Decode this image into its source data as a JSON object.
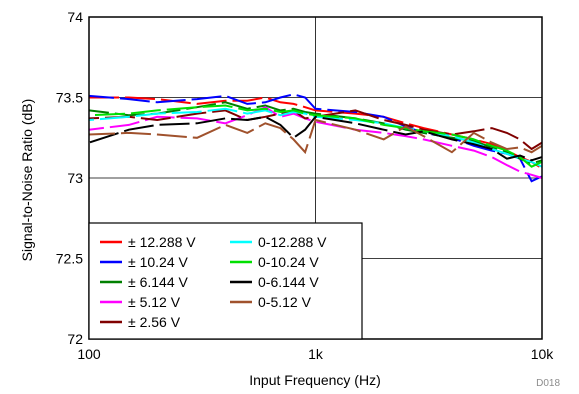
{
  "figure_id": "D018",
  "chart_data": {
    "type": "line",
    "title": "",
    "xlabel": "Input Frequency (Hz)",
    "ylabel": "Signal-to-Noise Ratio (dB)",
    "x_scale": "log",
    "xlim": [
      100,
      10000
    ],
    "ylim": [
      72,
      74
    ],
    "x_ticks": [
      100,
      1000,
      10000
    ],
    "x_tick_labels": [
      "100",
      "1k",
      "10k"
    ],
    "y_ticks": [
      72,
      72.5,
      73,
      73.5,
      74
    ],
    "y_tick_labels": [
      "72",
      "72.5",
      "73",
      "73.5",
      "74"
    ],
    "grid": true,
    "legend_placement": "bottom-left",
    "line_style": "dashed",
    "x": [
      100,
      150,
      200,
      300,
      400,
      500,
      600,
      700,
      800,
      900,
      1000,
      1500,
      2000,
      2500,
      3000,
      4000,
      5000,
      6000,
      7000,
      8000,
      9000,
      10000
    ],
    "series": [
      {
        "name": "± 12.288 V",
        "color": "#ff0000",
        "values": [
          73.5,
          73.5,
          73.49,
          73.46,
          73.48,
          73.48,
          73.5,
          73.47,
          73.46,
          73.44,
          73.42,
          73.4,
          73.38,
          73.34,
          73.31,
          73.27,
          73.24,
          73.21,
          73.17,
          73.13,
          73.1,
          73.06
        ]
      },
      {
        "name": "± 10.24 V",
        "color": "#0000ff",
        "values": [
          73.51,
          73.49,
          73.47,
          73.49,
          73.51,
          73.46,
          73.47,
          73.5,
          73.52,
          73.5,
          73.43,
          73.41,
          73.38,
          73.32,
          73.28,
          73.25,
          73.2,
          73.17,
          73.15,
          73.12,
          72.98,
          73.01
        ]
      },
      {
        "name": "± 6.144 V",
        "color": "#008000",
        "values": [
          73.42,
          73.39,
          73.4,
          73.44,
          73.47,
          73.43,
          73.45,
          73.42,
          73.43,
          73.41,
          73.4,
          73.37,
          73.34,
          73.3,
          73.28,
          73.25,
          73.23,
          73.19,
          73.16,
          73.12,
          73.09,
          73.11
        ]
      },
      {
        "name": "± 5.12 V",
        "color": "#ff00ff",
        "values": [
          73.3,
          73.33,
          73.38,
          73.37,
          73.34,
          73.39,
          73.44,
          73.38,
          73.4,
          73.37,
          73.35,
          73.3,
          73.28,
          73.26,
          73.24,
          73.2,
          73.17,
          73.13,
          73.08,
          73.04,
          73.02,
          73.0
        ]
      },
      {
        "name": "± 2.56 V",
        "color": "#800000",
        "values": [
          73.37,
          73.38,
          73.36,
          73.4,
          73.42,
          73.36,
          73.38,
          73.4,
          73.42,
          73.37,
          73.38,
          73.42,
          73.36,
          73.33,
          73.3,
          73.27,
          73.29,
          73.31,
          73.28,
          73.24,
          73.18,
          73.22
        ]
      },
      {
        "name": "0-12.288 V",
        "color": "#00ffff",
        "values": [
          73.36,
          73.38,
          73.4,
          73.41,
          73.43,
          73.4,
          73.42,
          73.39,
          73.41,
          73.4,
          73.38,
          73.36,
          73.34,
          73.31,
          73.29,
          73.26,
          73.22,
          73.18,
          73.15,
          73.12,
          73.1,
          73.07
        ]
      },
      {
        "name": "0-10.24 V",
        "color": "#00e000",
        "values": [
          73.39,
          73.4,
          73.42,
          73.44,
          73.45,
          73.42,
          73.43,
          73.41,
          73.42,
          73.4,
          73.39,
          73.37,
          73.33,
          73.31,
          73.29,
          73.27,
          73.24,
          73.2,
          73.17,
          73.13,
          73.07,
          73.1
        ]
      },
      {
        "name": "0-6.144 V",
        "color": "#000000",
        "values": [
          73.22,
          73.3,
          73.33,
          73.34,
          73.37,
          73.36,
          73.38,
          73.33,
          73.25,
          73.3,
          73.38,
          73.34,
          73.3,
          73.27,
          73.29,
          73.24,
          73.21,
          73.18,
          73.12,
          73.14,
          73.11,
          73.13
        ]
      },
      {
        "name": "0-5.12 V",
        "color": "#a0522d",
        "values": [
          73.27,
          73.28,
          73.27,
          73.25,
          73.33,
          73.28,
          73.34,
          73.31,
          73.24,
          73.16,
          73.36,
          73.3,
          73.24,
          73.32,
          73.26,
          73.16,
          73.28,
          73.22,
          73.18,
          73.19,
          73.16,
          73.2
        ]
      }
    ]
  }
}
